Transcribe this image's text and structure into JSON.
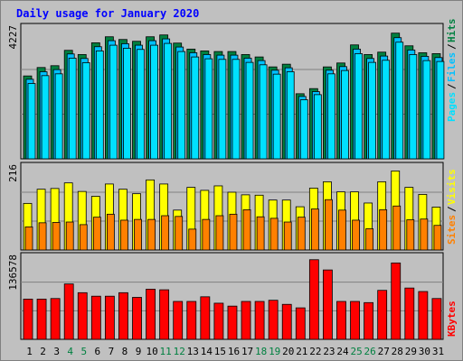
{
  "title": "Daily usage for January 2020",
  "colors": {
    "background": "#C0C0C0",
    "plot_background": "#C0C0C0",
    "title": "#0000FF",
    "hits": "#008040",
    "files": "#00C0FF",
    "pages": "#00E0FF",
    "visits": "#FFFF00",
    "sites": "#FF8000",
    "kbytes": "#FF0000",
    "weekend_day": "#008040",
    "weekday": "#000000",
    "grid": "#808080"
  },
  "chart_data": [
    {
      "type": "bar",
      "panel": "hits-files-pages",
      "categories": [
        "1",
        "2",
        "3",
        "4",
        "5",
        "6",
        "7",
        "8",
        "9",
        "10",
        "11",
        "12",
        "13",
        "14",
        "15",
        "16",
        "17",
        "18",
        "19",
        "20",
        "21",
        "22",
        "23",
        "24",
        "25",
        "26",
        "27",
        "28",
        "29",
        "30",
        "31"
      ],
      "ymax_label": "4227",
      "ymax": 4227,
      "series": [
        {
          "name": "Hits",
          "values": [
            2750,
            3030,
            3090,
            3600,
            3460,
            3850,
            4050,
            3960,
            3900,
            4050,
            4110,
            3840,
            3640,
            3580,
            3560,
            3560,
            3460,
            3380,
            3050,
            3140,
            2160,
            2330,
            3050,
            3180,
            3780,
            3460,
            3540,
            4170,
            3750,
            3520,
            3490
          ]
        },
        {
          "name": "Files",
          "values": [
            2640,
            2890,
            2960,
            3480,
            3330,
            3720,
            3920,
            3820,
            3770,
            3920,
            3980,
            3710,
            3520,
            3460,
            3440,
            3440,
            3340,
            3260,
            2940,
            3020,
            2070,
            2230,
            2940,
            3060,
            3640,
            3330,
            3410,
            4020,
            3610,
            3400,
            3360
          ]
        },
        {
          "name": "Pages",
          "values": [
            2500,
            2760,
            2820,
            3340,
            3190,
            3580,
            3770,
            3670,
            3630,
            3770,
            3830,
            3560,
            3380,
            3320,
            3300,
            3300,
            3200,
            3120,
            2810,
            2890,
            1960,
            2130,
            2820,
            2930,
            3490,
            3200,
            3270,
            3870,
            3460,
            3260,
            3230
          ]
        }
      ],
      "legend": "right-vertical"
    },
    {
      "type": "bar",
      "panel": "visits-sites",
      "categories": [
        "1",
        "2",
        "3",
        "4",
        "5",
        "6",
        "7",
        "8",
        "9",
        "10",
        "11",
        "12",
        "13",
        "14",
        "15",
        "16",
        "17",
        "18",
        "19",
        "20",
        "21",
        "22",
        "23",
        "24",
        "25",
        "26",
        "27",
        "28",
        "29",
        "30",
        "31"
      ],
      "ymax_label": "216",
      "ymax": 216,
      "series": [
        {
          "name": "Visits",
          "values": [
            125,
            163,
            165,
            180,
            157,
            144,
            177,
            163,
            151,
            188,
            177,
            107,
            168,
            160,
            172,
            155,
            148,
            147,
            134,
            134,
            116,
            166,
            183,
            156,
            156,
            126,
            183,
            212,
            168,
            149,
            115
          ]
        },
        {
          "name": "Sites",
          "values": [
            62,
            73,
            74,
            75,
            68,
            88,
            96,
            80,
            82,
            82,
            92,
            90,
            56,
            82,
            92,
            96,
            108,
            89,
            85,
            75,
            88,
            110,
            135,
            107,
            80,
            57,
            108,
            118,
            81,
            83,
            66
          ]
        }
      ],
      "legend": "right-vertical"
    },
    {
      "type": "bar",
      "panel": "kbytes",
      "categories": [
        "1",
        "2",
        "3",
        "4",
        "5",
        "6",
        "7",
        "8",
        "9",
        "10",
        "11",
        "12",
        "13",
        "14",
        "15",
        "16",
        "17",
        "18",
        "19",
        "20",
        "21",
        "22",
        "23",
        "24",
        "25",
        "26",
        "27",
        "28",
        "29",
        "30",
        "31"
      ],
      "ymax_label": "136578",
      "ymax": 136578,
      "series": [
        {
          "name": "KBytes",
          "values": [
            69000,
            69000,
            70000,
            95000,
            80000,
            74000,
            74000,
            80000,
            72000,
            86000,
            85000,
            65000,
            65000,
            73000,
            62000,
            57000,
            65000,
            65000,
            67000,
            60000,
            54000,
            136578,
            119000,
            65000,
            65000,
            63000,
            84000,
            131000,
            88000,
            82000,
            70000
          ]
        }
      ],
      "legend": "right-vertical"
    }
  ],
  "weekend_days": [
    4,
    5,
    11,
    12,
    18,
    19,
    25,
    26
  ]
}
